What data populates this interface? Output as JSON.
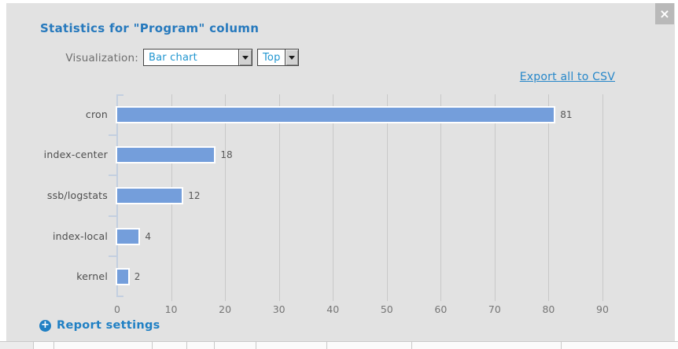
{
  "dialog": {
    "title": "Statistics for \"Program\" column",
    "close_glyph": "×",
    "visualization_label": "Visualization:",
    "chart_type_select": {
      "value": "Bar chart"
    },
    "top_select": {
      "value": "Top"
    },
    "export_link": "Export all to CSV",
    "report_settings": "Report settings",
    "plus_glyph": "+"
  },
  "chart_data": {
    "type": "bar",
    "orientation": "horizontal",
    "categories": [
      "cron",
      "index-center",
      "ssb/logstats",
      "index-local",
      "kernel"
    ],
    "values": [
      81,
      18,
      12,
      4,
      2
    ],
    "xlim": [
      0,
      90
    ],
    "x_ticks": [
      0,
      10,
      20,
      30,
      40,
      50,
      60,
      70,
      80,
      90
    ],
    "value_labels": true,
    "grid": true,
    "legend": "none",
    "bar_color": "#749edb",
    "bar_border_color": "#ffffff"
  },
  "colors": {
    "dialog_bg": "#e2e2e2",
    "title_blue": "#2679bd",
    "link_blue": "#2787c9",
    "select_text_blue": "#2196d0",
    "accent_blue": "#2080c4",
    "bar_fill": "#749edb",
    "grid_line": "#c8c8c8",
    "axis_line": "#c3cfe0",
    "close_button_bg": "#b9b9b9"
  }
}
